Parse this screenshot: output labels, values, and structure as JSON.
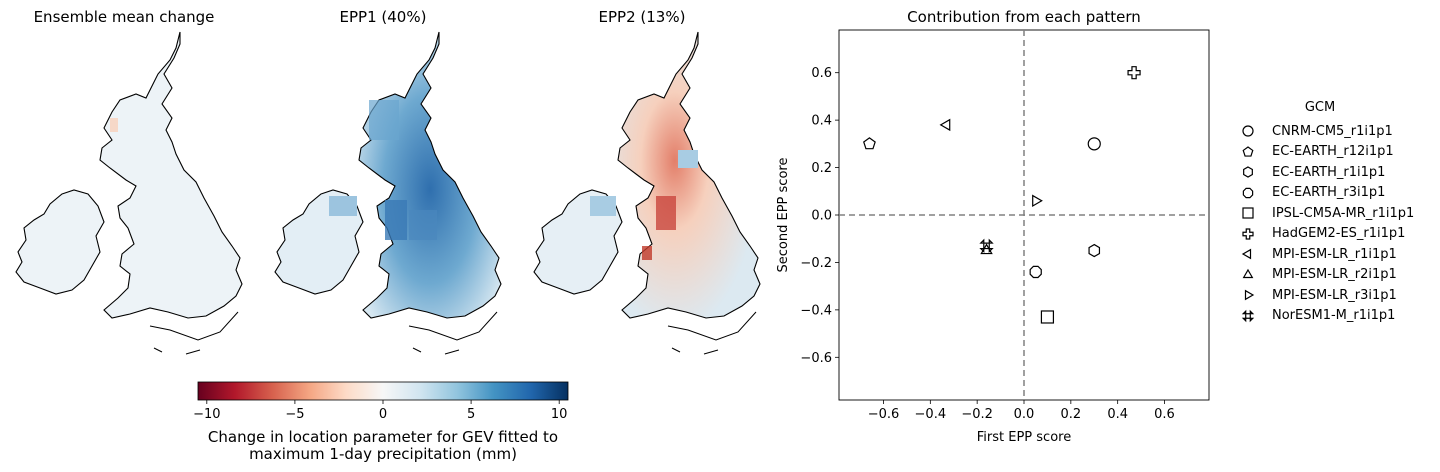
{
  "maps": {
    "titles": [
      "Ensemble mean change",
      "EPP1 (40%)",
      "EPP2 (13%)"
    ]
  },
  "colorbar": {
    "colormap": "RdBu",
    "range": [
      -10.5,
      10.5
    ],
    "ticks": [
      -10,
      -5,
      0,
      5,
      10
    ],
    "tick_labels": [
      "−10",
      "−5",
      "0",
      "5",
      "10"
    ],
    "label_line1": "Change in location parameter for GEV fitted to",
    "label_line2": "maximum 1-day precipitation (mm)"
  },
  "chart_data": {
    "type": "scatter",
    "title": "Contribution from each pattern",
    "xlabel": "First EPP score",
    "ylabel": "Second EPP score",
    "xlim": [
      -0.79,
      0.79
    ],
    "ylim": [
      -0.78,
      0.78
    ],
    "xticks": [
      -0.6,
      -0.4,
      -0.2,
      0.0,
      0.2,
      0.4,
      0.6
    ],
    "xtick_labels": [
      "−0.6",
      "−0.4",
      "−0.2",
      "0.0",
      "0.2",
      "0.4",
      "0.6"
    ],
    "yticks": [
      -0.6,
      -0.4,
      -0.2,
      0.0,
      0.2,
      0.4,
      0.6
    ],
    "ytick_labels": [
      "−0.6",
      "−0.4",
      "−0.2",
      "0.0",
      "0.2",
      "0.4",
      "0.6"
    ],
    "reference_lines": {
      "x": 0.0,
      "y": 0.0,
      "style": "dashed",
      "color": "#808080"
    },
    "legend_title": "GCM",
    "legend_position": "right",
    "series": [
      {
        "name": "CNRM-CM5_r1i1p1",
        "marker": "circle",
        "x": 0.3,
        "y": 0.3
      },
      {
        "name": "EC-EARTH_r12i1p1",
        "marker": "pentagon",
        "x": -0.66,
        "y": 0.3
      },
      {
        "name": "EC-EARTH_r1i1p1",
        "marker": "hexagon",
        "x": 0.3,
        "y": -0.15
      },
      {
        "name": "EC-EARTH_r3i1p1",
        "marker": "octagon",
        "x": 0.05,
        "y": -0.24
      },
      {
        "name": "IPSL-CM5A-MR_r1i1p1",
        "marker": "square",
        "x": 0.1,
        "y": -0.43
      },
      {
        "name": "HadGEM2-ES_r1i1p1",
        "marker": "plus",
        "x": 0.47,
        "y": 0.6
      },
      {
        "name": "MPI-ESM-LR_r1i1p1",
        "marker": "triangle-left",
        "x": -0.33,
        "y": 0.38
      },
      {
        "name": "MPI-ESM-LR_r2i1p1",
        "marker": "triangle-up",
        "x": -0.16,
        "y": -0.15
      },
      {
        "name": "MPI-ESM-LR_r3i1p1",
        "marker": "triangle-right",
        "x": 0.05,
        "y": 0.06
      },
      {
        "name": "NorESM1-M_r1i1p1",
        "marker": "x-filled",
        "x": -0.16,
        "y": -0.13
      }
    ]
  }
}
